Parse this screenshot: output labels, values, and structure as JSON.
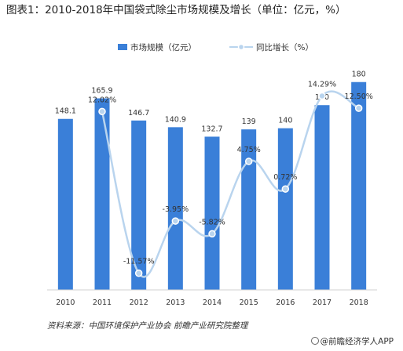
{
  "title": "图表1：2010-2018年中国袋式除尘市场规模及增长（单位：亿元，%）",
  "source": "资料来源：中国环境保护产业协会 前瞻产业研究院整理",
  "brand": "@前瞻经济学人APP",
  "colors": {
    "bar": "#3A7FD8",
    "line": "#B9D4EE",
    "marker": "#B9D4EE",
    "marker_stroke": "#ffffff"
  },
  "chart_data": {
    "type": "bar",
    "categories": [
      "2010",
      "2011",
      "2012",
      "2013",
      "2014",
      "2015",
      "2016",
      "2017",
      "2018"
    ],
    "series": [
      {
        "name": "市场规模（亿元）",
        "type": "bar",
        "values": [
          148.1,
          165.9,
          146.7,
          140.9,
          132.7,
          139,
          140,
          160,
          180
        ],
        "labels": [
          "148.1",
          "165.9",
          "146.7",
          "140.9",
          "132.7",
          "139",
          "140",
          "160",
          "180"
        ]
      },
      {
        "name": "同比增长（%）",
        "type": "line",
        "smooth": true,
        "values": [
          null,
          12.02,
          -11.57,
          -3.95,
          -5.82,
          4.75,
          0.72,
          14.29,
          12.5
        ],
        "labels": [
          "",
          "12.02%",
          "-11.57%",
          "-3.95%",
          "-5.82%",
          "4.75%",
          "0.72%",
          "14.29%",
          "12.50%"
        ]
      }
    ],
    "bar_ylim": [
      0,
      190
    ],
    "line_ylim": [
      -14,
      18
    ],
    "legend_position": "top",
    "grid": false
  }
}
